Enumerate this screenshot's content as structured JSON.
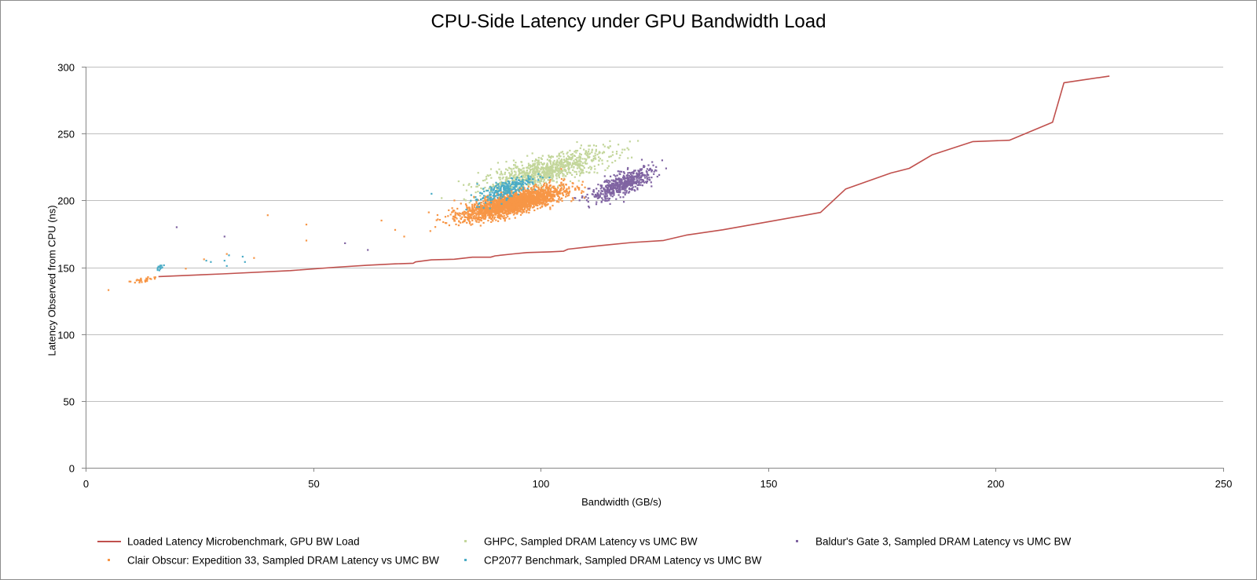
{
  "chart_data": {
    "type": "scatter",
    "title": "CPU-Side Latency under GPU Bandwidth Load",
    "xlabel": "Bandwidth (GB/s)",
    "ylabel": "Latency Observed from CPU (ns)",
    "xlim": [
      0,
      250
    ],
    "ylim": [
      0,
      300
    ],
    "x_ticks": [
      0,
      50,
      100,
      150,
      200,
      250
    ],
    "y_ticks": [
      0,
      50,
      100,
      150,
      200,
      250,
      300
    ],
    "grid": "horizontal",
    "legend_position": "bottom",
    "series": [
      {
        "name": "Loaded Latency Microbenchmark, GPU BW Load",
        "kind": "line",
        "color": "#c0504d",
        "points": [
          [
            16,
            143
          ],
          [
            30,
            145
          ],
          [
            45,
            147.5
          ],
          [
            55,
            150
          ],
          [
            62,
            151.5
          ],
          [
            68,
            152.5
          ],
          [
            72,
            153
          ],
          [
            72.5,
            154
          ],
          [
            76,
            155.5
          ],
          [
            81,
            156
          ],
          [
            85,
            157.5
          ],
          [
            89,
            157.5
          ],
          [
            90,
            158.5
          ],
          [
            94,
            160
          ],
          [
            97,
            161
          ],
          [
            102,
            161.5
          ],
          [
            105,
            162
          ],
          [
            106,
            163.5
          ],
          [
            110,
            165
          ],
          [
            114,
            166.5
          ],
          [
            120,
            168.5
          ],
          [
            127,
            170
          ],
          [
            132,
            174
          ],
          [
            140,
            178
          ],
          [
            150,
            184
          ],
          [
            161.5,
            191
          ],
          [
            167,
            208.5
          ],
          [
            172,
            214.5
          ],
          [
            177,
            220.5
          ],
          [
            181,
            224
          ],
          [
            186,
            234
          ],
          [
            195,
            244
          ],
          [
            203,
            245
          ],
          [
            212.5,
            258.5
          ],
          [
            215,
            288
          ],
          [
            225,
            293
          ]
        ]
      },
      {
        "name": "GHPC, Sampled DRAM Latency vs UMC BW",
        "kind": "scatter",
        "color": "#c3d69b",
        "cluster": {
          "center": [
            101,
            222
          ],
          "spread": [
            7,
            8
          ],
          "count": 900,
          "x_range": [
            76,
            131
          ],
          "y_range": [
            190,
            246
          ]
        }
      },
      {
        "name": "Baldur's Gate 3, Sampled DRAM Latency vs UMC BW",
        "kind": "scatter",
        "color": "#8064a2",
        "cluster": {
          "center": [
            118,
            212
          ],
          "spread": [
            3.5,
            6
          ],
          "count": 550,
          "x_range": [
            105,
            128
          ],
          "y_range": [
            185,
            240
          ]
        },
        "outliers": [
          [
            20,
            180
          ],
          [
            30.5,
            173
          ],
          [
            57,
            168
          ],
          [
            62,
            163
          ]
        ]
      },
      {
        "name": "Clair Obscur: Expedition 33, Sampled DRAM Latency vs UMC BW",
        "kind": "scatter",
        "color": "#f79646",
        "cluster": {
          "center": [
            94,
            198
          ],
          "spread": [
            5.5,
            6
          ],
          "count": 2200,
          "x_range": [
            72,
            110
          ],
          "y_range": [
            168,
            225
          ]
        },
        "low_cluster": {
          "center": [
            12.5,
            140.5
          ],
          "spread": [
            2,
            1.5
          ],
          "count": 30
        },
        "outliers": [
          [
            5,
            133
          ],
          [
            22,
            149
          ],
          [
            26,
            156
          ],
          [
            31,
            160
          ],
          [
            37,
            157
          ],
          [
            40,
            189
          ],
          [
            48.5,
            170
          ],
          [
            48.5,
            182
          ],
          [
            65,
            185
          ],
          [
            68,
            178
          ],
          [
            70,
            173
          ]
        ]
      },
      {
        "name": "CP2077 Benchmark, Sampled DRAM Latency vs UMC BW",
        "kind": "scatter",
        "color": "#4bacc6",
        "cluster": {
          "center": [
            92,
            208
          ],
          "spread": [
            3,
            5
          ],
          "count": 260,
          "x_range": [
            82,
            102
          ],
          "y_range": [
            193,
            222
          ]
        },
        "low_cluster": {
          "center": [
            16,
            149
          ],
          "spread": [
            0.6,
            2
          ],
          "count": 14
        },
        "outliers": [
          [
            26.5,
            155
          ],
          [
            27.5,
            154
          ],
          [
            30.5,
            155
          ],
          [
            31.5,
            159
          ],
          [
            34.5,
            158
          ],
          [
            35,
            154
          ],
          [
            31,
            151
          ],
          [
            76,
            205
          ]
        ]
      }
    ]
  }
}
